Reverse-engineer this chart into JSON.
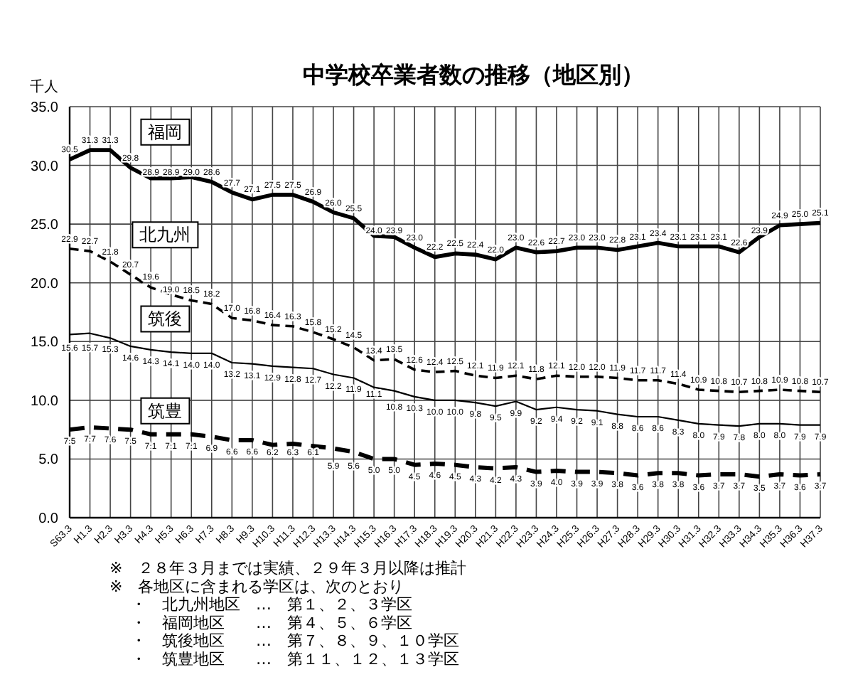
{
  "chart_data": {
    "type": "line",
    "title": "中学校卒業者数の推移（地区別）",
    "ylabel": "千人",
    "categories": [
      "S63.3",
      "H1.3",
      "H2.3",
      "H3.3",
      "H4.3",
      "H5.3",
      "H6.3",
      "H7.3",
      "H8.3",
      "H9.3",
      "H10.3",
      "H11.3",
      "H12.3",
      "H13.3",
      "H14.3",
      "H15.3",
      "H16.3",
      "H17.3",
      "H18.3",
      "H19.3",
      "H20.3",
      "H21.3",
      "H22.3",
      "H23.3",
      "H24.3",
      "H25.3",
      "H26.3",
      "H27.3",
      "H28.3",
      "H29.3",
      "H30.3",
      "H31.3",
      "H32.3",
      "H33.3",
      "H34.3",
      "H35.3",
      "H36.3",
      "H37.3"
    ],
    "series": [
      {
        "name": "福岡",
        "color": "#000000",
        "line_style": "solid",
        "values": [
          30.5,
          31.3,
          31.3,
          29.8,
          28.9,
          28.9,
          29.0,
          28.6,
          27.7,
          27.1,
          27.5,
          27.5,
          26.9,
          26.0,
          25.5,
          24.0,
          23.9,
          23.0,
          22.2,
          22.5,
          22.4,
          22.0,
          23.0,
          22.6,
          22.7,
          23.0,
          23.0,
          22.8,
          23.1,
          23.4,
          23.1,
          23.1,
          23.1,
          22.6,
          23.9,
          24.9,
          25.0,
          25.1
        ],
        "value_labels": [
          "30.5",
          "31.3",
          "31.3",
          "29.8",
          "28.9",
          "28.9",
          "29.0",
          "28.6",
          "27.7",
          "27.1",
          "27.5",
          "27.5",
          "26.9",
          "26.0",
          "25.5",
          "24.0",
          "23.9",
          "23.0",
          "22.2",
          "22.5",
          "22.4",
          "22.0",
          "23.0",
          "22.6",
          "22.7",
          "23.0",
          "23.0",
          "22.8",
          "23.1",
          "23.4",
          "23.1",
          "23.1",
          "23.1",
          "22.6",
          "23.9",
          "24.9",
          "25.0",
          "25.1"
        ]
      },
      {
        "name": "北九州",
        "color": "#000000",
        "line_style": "dashed",
        "values": [
          22.9,
          22.7,
          21.8,
          20.7,
          19.6,
          19.0,
          18.5,
          18.2,
          17.0,
          16.8,
          16.4,
          16.3,
          15.8,
          15.2,
          14.5,
          13.4,
          13.5,
          12.6,
          12.4,
          12.5,
          12.1,
          11.9,
          12.1,
          11.8,
          12.1,
          12.0,
          12.0,
          11.9,
          11.7,
          11.7,
          11.4,
          10.9,
          10.8,
          10.7,
          10.8,
          10.9,
          10.8,
          10.7
        ],
        "value_labels": [
          "22.9",
          "22.7",
          "21.8",
          "20.7",
          "19.6",
          "19.0",
          "18.5",
          "18.2",
          "17.0",
          "16.8",
          "16.4",
          "16.3",
          "15.8",
          "15.2",
          "14.5",
          "13.4",
          "13.5",
          "12.6",
          "12.4",
          "12.5",
          "12.1",
          "11.9",
          "12.1",
          "11.8",
          "12.1",
          "12.0",
          "12.0",
          "11.9",
          "11.7",
          "11.7",
          "11.4",
          "10.9",
          "10.8",
          "10.7",
          "10.8",
          "10.9",
          "10.8",
          "10.7"
        ]
      },
      {
        "name": "筑後",
        "color": "#000000",
        "line_style": "solid",
        "values": [
          15.6,
          15.7,
          15.3,
          14.6,
          14.3,
          14.1,
          14.0,
          14.0,
          13.2,
          13.1,
          12.9,
          12.8,
          12.7,
          12.2,
          11.9,
          11.1,
          10.8,
          10.3,
          10.0,
          10.0,
          9.8,
          9.5,
          9.9,
          9.2,
          9.4,
          9.2,
          9.1,
          8.8,
          8.6,
          8.6,
          8.3,
          8.0,
          7.9,
          7.8,
          8.0,
          8.0,
          7.9,
          7.9
        ],
        "value_labels": [
          "15.6",
          "15.7",
          "15.3",
          "14.6",
          "14.3",
          "14.1",
          "14.0",
          "14.0",
          "13.2",
          "13.1",
          "12.9",
          "12.8",
          "12.7",
          "12.2",
          "11.9",
          "11.1",
          "10.8",
          "10.3",
          "10.0",
          "10.0",
          "9.8",
          "9.5",
          "9.9",
          "9.2",
          "9.4",
          "9.2",
          "9.1",
          "8.8",
          "8.6",
          "8.6",
          "8.3",
          "8.0",
          "7.9",
          "7.8",
          "8.0",
          "8.0",
          "7.9",
          "7.9"
        ]
      },
      {
        "name": "筑豊",
        "color": "#000000",
        "line_style": "dashed",
        "values": [
          7.5,
          7.7,
          7.6,
          7.5,
          7.1,
          7.1,
          7.1,
          6.9,
          6.6,
          6.6,
          6.2,
          6.3,
          6.1,
          5.9,
          5.6,
          5.0,
          5.0,
          4.5,
          4.6,
          4.5,
          4.3,
          4.2,
          4.3,
          3.9,
          4.0,
          3.9,
          3.9,
          3.8,
          3.6,
          3.8,
          3.8,
          3.6,
          3.7,
          3.7,
          3.5,
          3.7,
          3.6,
          3.7
        ],
        "value_labels": [
          "7.5",
          "7.7",
          "7.6",
          "7.5",
          "7.1",
          "7.1",
          "7.1",
          "6.9",
          "6.6",
          "6.6",
          "6.2",
          "6.3",
          "6.1",
          "5.9",
          "5.6",
          "5.0",
          "5.0",
          "4.5",
          "4.6",
          "4.5",
          "4.3",
          "4.2",
          "4.3",
          "3.9",
          "4.0",
          "3.9",
          "3.9",
          "3.8",
          "3.6",
          "3.8",
          "3.8",
          "3.6",
          "3.7",
          "3.7",
          "3.5",
          "3.7",
          "3.6",
          "3.7"
        ]
      }
    ],
    "ylim": [
      0,
      35
    ],
    "yticks": [
      {
        "value": 0,
        "label": "0.0"
      },
      {
        "value": 5,
        "label": "5.0"
      },
      {
        "value": 10,
        "label": "10.0"
      },
      {
        "value": 15,
        "label": "15.0"
      },
      {
        "value": 20,
        "label": "20.0"
      },
      {
        "value": 25,
        "label": "25.0"
      },
      {
        "value": 30,
        "label": "30.0"
      },
      {
        "value": 35,
        "label": "35.0"
      }
    ],
    "grid": true,
    "annotations": [
      "※　２８年３月までは実績、２９年３月以降は推計",
      "※　各地区に含まれる学区は、次のとおり",
      "・　北九州地区　…　第１、２、３学区",
      "・　福岡地区　　…　第４、５、６学区",
      "・　筑後地区　　…　第７、８、９、１０学区",
      "・　筑豊地区　　…　第１１、１２、１３学区"
    ]
  }
}
